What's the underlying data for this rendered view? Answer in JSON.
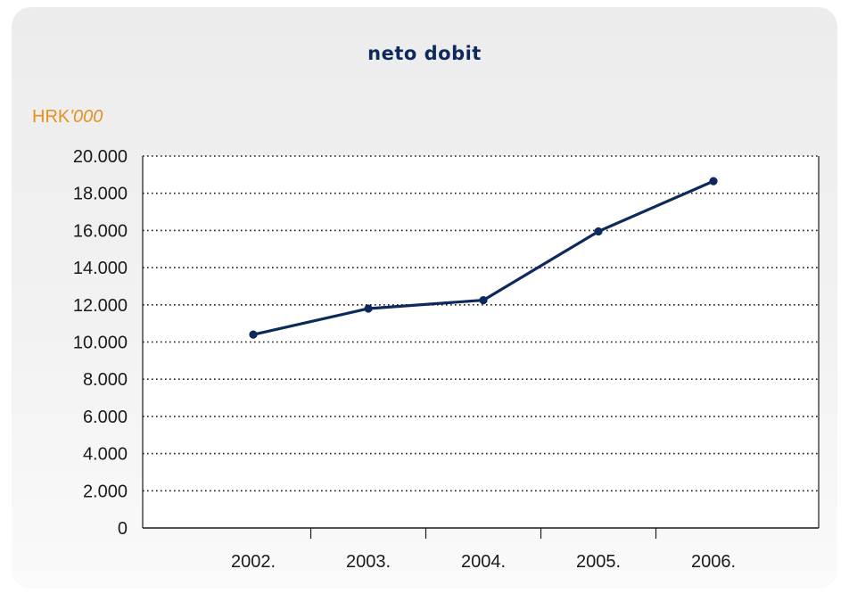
{
  "chart_data": {
    "type": "line",
    "title": "neto dobit",
    "unit_label": "HRK",
    "unit_suffix": "'000",
    "categories": [
      "2002.",
      "2003.",
      "2004.",
      "2005.",
      "2006."
    ],
    "series": [
      {
        "values": [
          10400,
          11800,
          12250,
          15950,
          18650
        ]
      }
    ],
    "y_ticks": [
      "0",
      "2.000",
      "4.000",
      "6.000",
      "8.000",
      "10.000",
      "12.000",
      "14.000",
      "16.000",
      "18.000",
      "20.000"
    ],
    "ylim": [
      0,
      20000
    ],
    "grid": true,
    "colors": {
      "line": "#0c2a5b",
      "title": "#0c2a5b",
      "unit": "#e8901c"
    }
  }
}
